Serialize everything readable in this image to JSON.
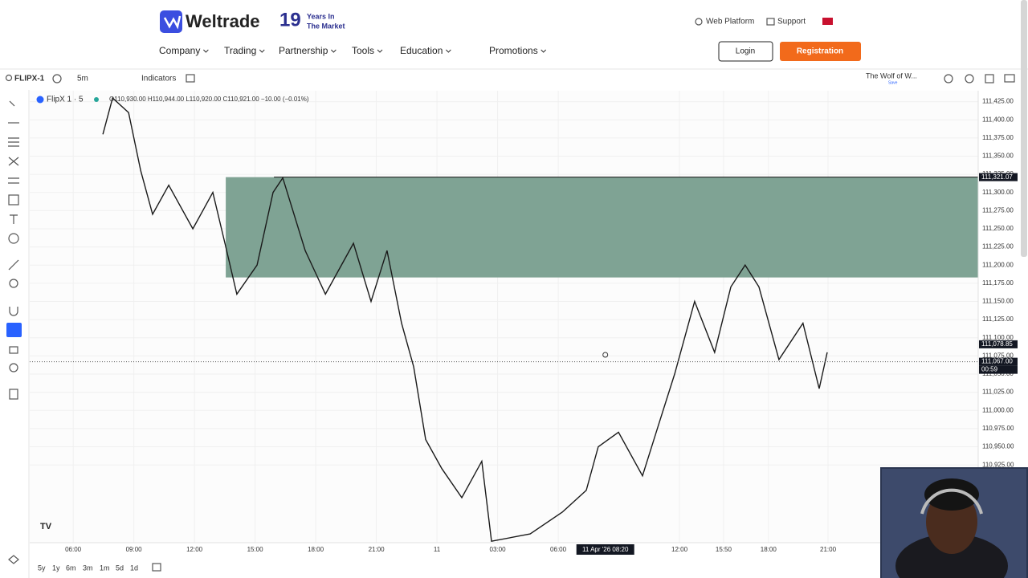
{
  "header": {
    "logo": "Weltrade",
    "years": "19",
    "years_line_1": "Years In",
    "years_line_2": "The Market",
    "nav": [
      "Company",
      "Trading",
      "Partnership",
      "Tools",
      "Education",
      "Promotions"
    ],
    "links": [
      "Web Platform",
      "Support"
    ],
    "login": "Login",
    "register": "Registration"
  },
  "toolbar": {
    "symbol": "FLIPX-1",
    "interval": "5m",
    "indicators": "Indicators",
    "layout": "The Wolf of W...",
    "save": "Save"
  },
  "chart_data": {
    "type": "line",
    "legend_symbol": "FlipX 1 · 5",
    "ohlc": "O110,930.00 H110,944.00 L110,920.00 C110,921.00 −10.00 (−0.01%)",
    "x": [
      1.47,
      1.95,
      2.74,
      3.34,
      3.93,
      4.73,
      5.92,
      6.91,
      7.51,
      8.1,
      9.1,
      9.89,
      10.37,
      11.48,
      12.48,
      13.87,
      14.74,
      15.53,
      16.25,
      16.85,
      17.44,
      18.24,
      19.23,
      20.22,
      20.7,
      22.61,
      24.2,
      25.39,
      25.98,
      26.98,
      28.17,
      28.96,
      29.76,
      30.75,
      31.74,
      32.54,
      33.25,
      33.93,
      34.92,
      36.11,
      36.91,
      37.31
    ],
    "series": [
      {
        "color": "#1a1a1a",
        "values": [
          111380,
          111430,
          111410,
          111330,
          111270,
          111310,
          111250,
          111300,
          111230,
          111160,
          111200,
          111300,
          111320,
          111220,
          111160,
          111230,
          111150,
          111220,
          111120,
          111060,
          110960,
          110920,
          110880,
          110930,
          110820,
          110830,
          110860,
          110890,
          110950,
          110970,
          110910,
          110980,
          111050,
          111150,
          111080,
          111170,
          111200,
          111170,
          111070,
          111120,
          111030,
          111080
        ]
      }
    ],
    "xlim": [
      -2.15,
      44.78
    ],
    "ylim": [
      110818,
      111440
    ],
    "xticks": [
      {
        "value": 0,
        "label": "06:00"
      },
      {
        "value": 3,
        "label": "09:00"
      },
      {
        "value": 6,
        "label": "12:00"
      },
      {
        "value": 9,
        "label": "15:00"
      },
      {
        "value": 12,
        "label": "18:00"
      },
      {
        "value": 15,
        "label": "21:00"
      },
      {
        "value": 18,
        "label": "11"
      },
      {
        "value": 21,
        "label": "03:00"
      },
      {
        "value": 24,
        "label": "06:00"
      },
      {
        "value": 30,
        "label": "12:00"
      },
      {
        "value": 32.18,
        "label": "15:50"
      },
      {
        "value": 34.4,
        "label": "18:00"
      },
      {
        "value": 37.35,
        "label": "21:00"
      }
    ],
    "yticks": [
      {
        "value": 111425,
        "label": "111,425.00"
      },
      {
        "value": 111400,
        "label": "111,400.00"
      },
      {
        "value": 111375,
        "label": "111,375.00"
      },
      {
        "value": 111350,
        "label": "111,350.00"
      },
      {
        "value": 111325,
        "label": "111,325.00"
      },
      {
        "value": 111300,
        "label": "111,300.00"
      },
      {
        "value": 111275,
        "label": "111,275.00"
      },
      {
        "value": 111250,
        "label": "111,250.00"
      },
      {
        "value": 111225,
        "label": "111,225.00"
      },
      {
        "value": 111200,
        "label": "111,200.00"
      },
      {
        "value": 111175,
        "label": "111,175.00"
      },
      {
        "value": 111150,
        "label": "111,150.00"
      },
      {
        "value": 111125,
        "label": "111,125.00"
      },
      {
        "value": 111100,
        "label": "111,100.00"
      },
      {
        "value": 111075,
        "label": "111,075.00"
      },
      {
        "value": 111050,
        "label": "111,050.00"
      },
      {
        "value": 111025,
        "label": "111,025.00"
      },
      {
        "value": 111000,
        "label": "111,000.00"
      },
      {
        "value": 110975,
        "label": "110,975.00"
      },
      {
        "value": 110950,
        "label": "110,950.00"
      },
      {
        "value": 110925,
        "label": "110,925.00"
      }
    ],
    "grid": true,
    "zone": {
      "top": 111321.07,
      "bottom": 111183,
      "x_start": 7.55,
      "color": "#7fa394"
    },
    "price_labels": [
      {
        "value": 111321.07,
        "label": "111,321.07"
      },
      {
        "value": 111078.85,
        "label": "111,078.85"
      },
      {
        "value": 111067,
        "label": "111,067.00"
      }
    ],
    "countdown": "00:59",
    "crosshair_x": 26.33,
    "crosshair_label": "11 Apr '26 08:20"
  },
  "footer": {
    "ranges": [
      "5y",
      "1y",
      "6m",
      "3m",
      "1m",
      "5d",
      "1d"
    ]
  }
}
